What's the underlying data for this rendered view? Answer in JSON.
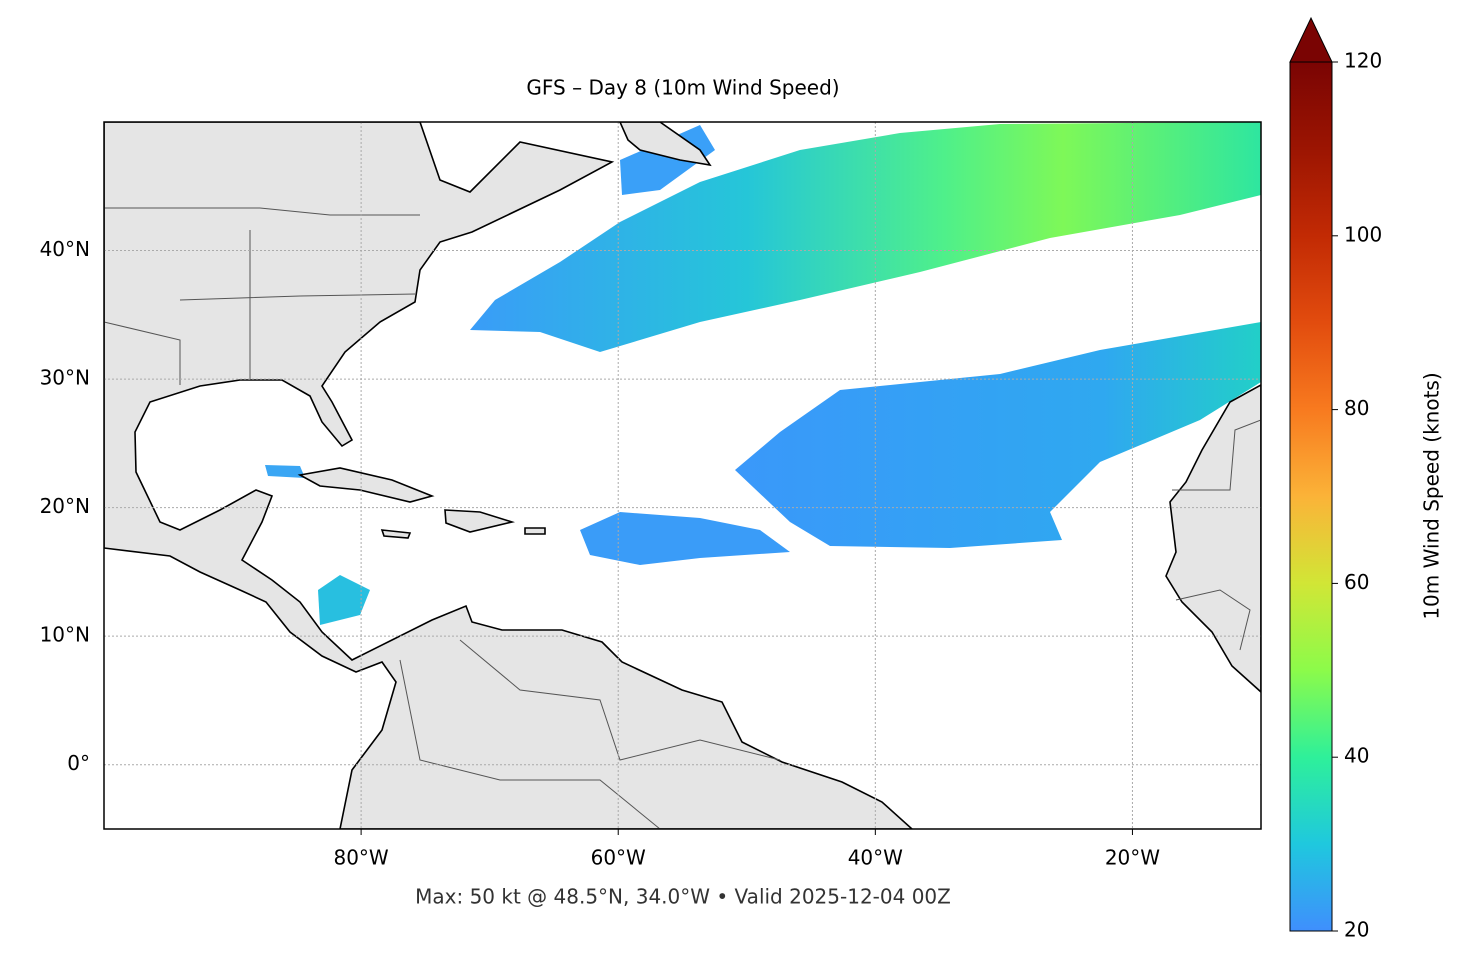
{
  "chart_data": {
    "type": "map",
    "title": "GFS – Day 8 (10m Wind Speed)",
    "footer": "Max: 50 kt @ 48.5°N, 34.0°W • Valid 2025-12-04 00Z",
    "xlim": [
      -100,
      -10
    ],
    "ylim": [
      -5,
      50
    ],
    "xticks": [
      {
        "value": -80,
        "label": "80°W"
      },
      {
        "value": -60,
        "label": "60°W"
      },
      {
        "value": -40,
        "label": "40°W"
      },
      {
        "value": -20,
        "label": "20°W"
      }
    ],
    "yticks": [
      {
        "value": 0,
        "label": "0°"
      },
      {
        "value": 10,
        "label": "10°N"
      },
      {
        "value": 20,
        "label": "20°N"
      },
      {
        "value": 30,
        "label": "30°N"
      },
      {
        "value": 40,
        "label": "40°N"
      }
    ],
    "grid": true,
    "colorbar": {
      "label": "10m Wind Speed (knots)",
      "lim": [
        20,
        120
      ],
      "ticks": [
        20,
        40,
        60,
        80,
        100,
        120
      ]
    }
  }
}
